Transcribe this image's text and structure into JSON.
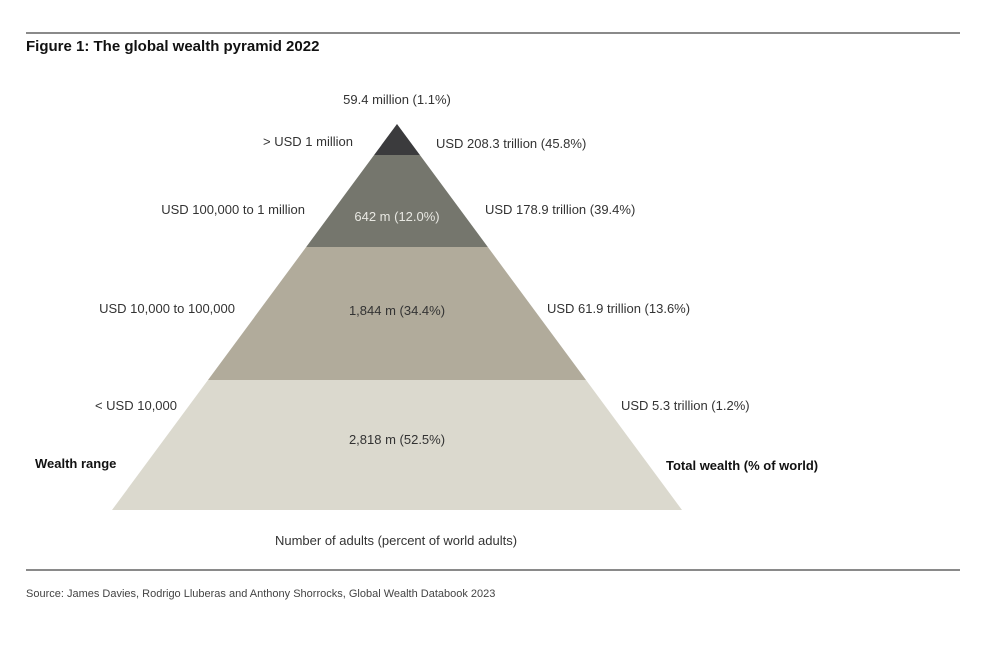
{
  "title": "Figure 1: The global wealth pyramid 2022",
  "source": "Source: James Davies, Rodrigo Lluberas and Anthony Shorrocks, Global Wealth Databook 2023",
  "left_axis_label": "Wealth range",
  "right_axis_label": "Total wealth (% of world)",
  "bottom_label": "Number of adults (percent of world adults)",
  "chart_data": {
    "type": "pyramid",
    "tiers": [
      {
        "wealth_range": "> USD 1 million",
        "adults": "59.4 million (1.1%)",
        "adults_millions": 59.4,
        "adults_pct": 1.1,
        "total_wealth": "USD 208.3 trillion (45.8%)",
        "wealth_trillion": 208.3,
        "wealth_pct": 45.8,
        "color": "#3b3b3d"
      },
      {
        "wealth_range": "USD 100,000  to 1 million",
        "adults": "642 m (12.0%)",
        "adults_millions": 642,
        "adults_pct": 12.0,
        "total_wealth": "USD 178.9 trillion (39.4%)",
        "wealth_trillion": 178.9,
        "wealth_pct": 39.4,
        "color": "#75766d"
      },
      {
        "wealth_range": "USD 10,000  to 100,000",
        "adults": "1,844 m (34.4%)",
        "adults_millions": 1844,
        "adults_pct": 34.4,
        "total_wealth": "USD 61.9 trillion (13.6%)",
        "wealth_trillion": 61.9,
        "wealth_pct": 13.6,
        "color": "#b1ab9b"
      },
      {
        "wealth_range": "< USD 10,000",
        "adults": "2,818 m (52.5%)",
        "adults_millions": 2818,
        "adults_pct": 52.5,
        "total_wealth": "USD 5.3 trillion (1.2%)",
        "wealth_trillion": 5.3,
        "wealth_pct": 1.2,
        "color": "#dbd9ce"
      }
    ]
  }
}
